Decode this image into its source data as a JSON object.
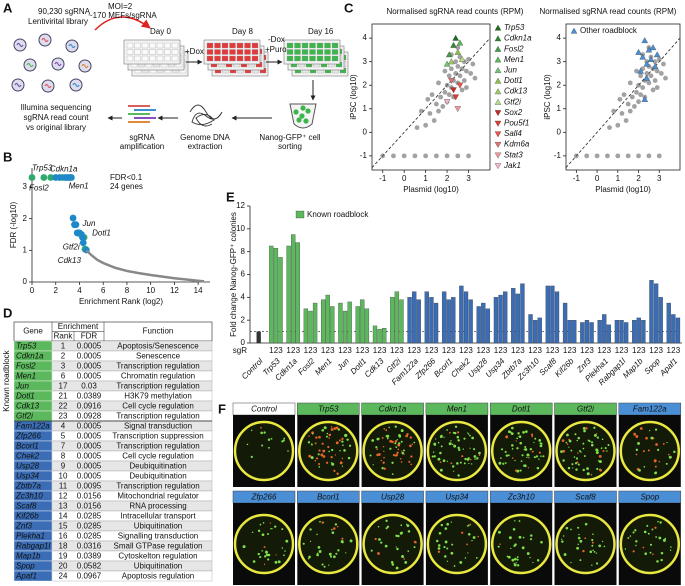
{
  "panel_labels": [
    "A",
    "B",
    "C",
    "D",
    "E",
    "F"
  ],
  "schematic": {
    "library": [
      "90,230 sgRNA",
      "Lentivirital library"
    ],
    "moi": [
      "MOI=2",
      "~170 MEFs/sgRNA"
    ],
    "days": [
      "Day 0",
      "Day 8",
      "Day 16"
    ],
    "treatments": [
      "+Dox",
      "-Dox",
      "+Puro"
    ],
    "sorting": [
      "Nanog-GFP⁺ cell",
      "sorting"
    ],
    "extraction": [
      "Genome DNA",
      "extraction"
    ],
    "amplification": [
      "sgRNA",
      "amplification"
    ],
    "sequencing": [
      "Illumina sequencing",
      "sgRNA read count",
      "vs original library"
    ]
  },
  "chart_data": [
    {
      "type": "scatter",
      "xlabel": "Enrichment Rank (log2)",
      "ylabel": "FDR (-log10)",
      "annotations": [
        "FDR<0.1",
        "24 genes"
      ],
      "xlim": [
        0,
        15
      ],
      "xticks": [
        0,
        2,
        4,
        6,
        8,
        10,
        12,
        14
      ],
      "ylim": [
        0,
        3.6
      ],
      "yticks": [
        0,
        1,
        2,
        3
      ],
      "series": [
        {
          "mark": "point",
          "color": "#2eaa6e",
          "labels": [
            "Trp53",
            "Cdkn1a",
            "Fosl2",
            "Men1",
            "Jun",
            "Dotl1",
            "Cdk13",
            "Gtf2i"
          ],
          "x": [
            0,
            1,
            1.58,
            2.58,
            4.09,
            4.39,
            4.46,
            4.52
          ],
          "values": [
            3.3,
            3.3,
            3.3,
            3.3,
            1.52,
            1.41,
            1.04,
            1.03
          ]
        },
        {
          "mark": "point",
          "color": "#1e88c8",
          "x": [
            2,
            2.32,
            2.81,
            3,
            3.17,
            3.32,
            3.46,
            3.58,
            3.7,
            3.81,
            3.91,
            4,
            4.17,
            4.25,
            4.32,
            4.58
          ],
          "values": [
            3.3,
            3.3,
            3.3,
            3.3,
            3.3,
            3.3,
            2.02,
            1.81,
            1.81,
            1.55,
            1.55,
            1.55,
            1.5,
            1.41,
            1.24,
            1.01
          ]
        },
        {
          "mark": "line",
          "color": "#888888",
          "x": [
            4.6,
            5,
            5.5,
            6,
            7,
            8,
            9,
            10,
            11,
            12,
            13,
            14,
            14.5
          ],
          "values": [
            1.0,
            0.85,
            0.7,
            0.6,
            0.45,
            0.35,
            0.28,
            0.22,
            0.17,
            0.12,
            0.08,
            0.04,
            0.02
          ]
        }
      ]
    },
    {
      "type": "scatter",
      "title": "Normalised sgRNA read counts (RPM)",
      "xlabel": "Plasmid (log10)",
      "ylabel": "iPSC (log10)",
      "xlim": [
        -1.5,
        4
      ],
      "xticks": [
        -1,
        0,
        1,
        2,
        3
      ],
      "ylim": [
        -1.6,
        4.6
      ],
      "yticks": [
        -1,
        0,
        1,
        2,
        3,
        4
      ],
      "legend": "right",
      "series": [
        {
          "marker": "dot",
          "color": "#555555",
          "x": [
            1.0,
            1.2,
            1.4,
            1.5,
            1.6,
            1.7,
            1.8,
            1.9,
            2.0,
            2.0,
            2.1,
            2.1,
            2.2,
            2.2,
            2.3,
            2.3,
            2.4,
            2.4,
            2.5,
            2.5,
            2.6,
            2.6,
            2.7,
            2.7,
            2.8,
            2.8,
            2.9,
            3.0,
            3.1,
            3.2,
            1.3,
            1.6,
            1.9,
            2.2,
            2.5,
            0.8,
            1.1,
            2.9,
            3.3,
            0.6,
            -1,
            -0.5,
            0,
            0.5,
            1,
            1.5,
            2,
            2.5,
            3
          ],
          "values": [
            0.3,
            0.8,
            0.5,
            1.2,
            0.9,
            1.5,
            1.1,
            1.7,
            1.3,
            2.0,
            1.6,
            2.4,
            1.9,
            2.7,
            2.2,
            1.5,
            2.5,
            3.0,
            2.1,
            2.8,
            2.4,
            3.2,
            2.7,
            1.8,
            3.0,
            2.2,
            2.6,
            3.1,
            2.5,
            2.9,
            1.6,
            2.1,
            2.6,
            3.3,
            3.6,
            0.9,
            1.4,
            1.9,
            2.3,
            0.2,
            -1,
            -1,
            -1,
            -1,
            -1,
            -1,
            -1,
            -1,
            -1
          ]
        },
        {
          "name": "Trp53",
          "marker": "up",
          "color": "#1b6e1b",
          "x": [
            2.4
          ],
          "values": [
            4.0
          ]
        },
        {
          "name": "Cdkn1a",
          "marker": "up",
          "color": "#2e8b2e",
          "x": [
            2.3
          ],
          "values": [
            3.7
          ]
        },
        {
          "name": "Fosl2",
          "marker": "up",
          "color": "#43a047",
          "x": [
            2.1
          ],
          "values": [
            3.3
          ]
        },
        {
          "name": "Men1",
          "marker": "up",
          "color": "#5cb85c",
          "x": [
            2.6
          ],
          "values": [
            3.8
          ]
        },
        {
          "name": "Jun",
          "marker": "up",
          "color": "#76c376",
          "x": [
            2.0
          ],
          "values": [
            2.9
          ]
        },
        {
          "name": "Dotl1",
          "marker": "up",
          "color": "#8bc34a",
          "x": [
            2.5
          ],
          "values": [
            3.4
          ]
        },
        {
          "name": "Cdk13",
          "marker": "up",
          "color": "#9ccc65",
          "x": [
            2.2
          ],
          "values": [
            3.0
          ]
        },
        {
          "name": "Gtf2i",
          "marker": "up",
          "color": "#b9dc8c",
          "x": [
            2.7
          ],
          "values": [
            3.1
          ]
        },
        {
          "name": "Sox2",
          "marker": "down",
          "color": "#c62828",
          "x": [
            2.3
          ],
          "values": [
            1.8
          ]
        },
        {
          "name": "Pou5f1",
          "marker": "down",
          "color": "#e53935",
          "x": [
            2.4
          ],
          "values": [
            1.5
          ]
        },
        {
          "name": "Sall4",
          "marker": "down",
          "color": "#ef5350",
          "x": [
            2.6
          ],
          "values": [
            2.0
          ]
        },
        {
          "name": "Kdm6a",
          "marker": "down",
          "color": "#e57373",
          "x": [
            2.2
          ],
          "values": [
            2.2
          ]
        },
        {
          "name": "Stat3",
          "marker": "down",
          "color": "#ef9a9a",
          "x": [
            2.5
          ],
          "values": [
            1.0
          ]
        },
        {
          "name": "Jak1",
          "marker": "down",
          "color": "#f4b6c8",
          "x": [
            2.0
          ],
          "values": [
            1.3
          ]
        }
      ]
    },
    {
      "type": "scatter",
      "title": "Normalised sgRNA read counts (RPM)",
      "xlabel": "Plasmid (log10)",
      "ylabel": "iPSC (log10)",
      "xlim": [
        -1.5,
        4
      ],
      "xticks": [
        -1,
        0,
        1,
        2,
        3
      ],
      "ylim": [
        -1.6,
        4.6
      ],
      "yticks": [
        -1,
        0,
        1,
        2,
        3,
        4
      ],
      "legend": "top-left",
      "series": [
        {
          "marker": "dot",
          "color": "#555555",
          "x": [
            1.0,
            1.2,
            1.4,
            1.5,
            1.6,
            1.7,
            1.8,
            1.9,
            2.0,
            2.0,
            2.1,
            2.1,
            2.2,
            2.2,
            2.3,
            2.3,
            2.4,
            2.4,
            2.5,
            2.5,
            2.6,
            2.6,
            2.7,
            2.7,
            2.8,
            2.8,
            2.9,
            3.0,
            3.1,
            3.2,
            1.3,
            1.6,
            1.9,
            2.2,
            2.5,
            0.8,
            1.1,
            2.9,
            3.3,
            0.6,
            -1,
            -0.5,
            0,
            0.5,
            1,
            1.5,
            2,
            2.5,
            3
          ],
          "values": [
            0.3,
            0.8,
            0.5,
            1.2,
            0.9,
            1.5,
            1.1,
            1.7,
            1.3,
            2.0,
            1.6,
            2.4,
            1.9,
            2.7,
            2.2,
            1.5,
            2.5,
            3.0,
            2.1,
            2.8,
            2.4,
            3.2,
            2.7,
            1.8,
            3.0,
            2.2,
            2.6,
            3.1,
            2.5,
            2.9,
            1.6,
            2.1,
            2.6,
            3.3,
            3.6,
            0.9,
            1.4,
            1.9,
            2.3,
            0.2,
            -1,
            -1,
            -1,
            -1,
            -1,
            -1,
            -1,
            -1,
            -1
          ]
        },
        {
          "name": "Other roadblock",
          "marker": "up",
          "color": "#4a8fd6",
          "x": [
            2.3,
            2.5,
            2.2,
            2.7,
            2.4,
            2.6,
            2.1,
            2.8,
            2.4,
            2.0,
            2.9,
            2.3
          ],
          "values": [
            3.9,
            3.5,
            3.2,
            3.6,
            2.9,
            3.1,
            2.6,
            2.8,
            2.3,
            3.4,
            3.3,
            1.4
          ]
        }
      ]
    },
    {
      "type": "grouped-bar",
      "ylabel": "Fold change Nanog-GFP⁺ colonies",
      "guide_label": "sgR",
      "guides": [
        1,
        2,
        3
      ],
      "legend": [
        {
          "name": "Known roadblock",
          "color": "#5cb85c"
        }
      ],
      "ylim": [
        0,
        12
      ],
      "yticks": [
        0,
        2,
        4,
        6,
        8,
        10,
        12
      ],
      "groups": [
        {
          "name": "Control",
          "color": "#333333",
          "values": [
            1
          ]
        },
        {
          "name": "Trp53",
          "color": "#5cb85c",
          "values": [
            8.5,
            8.3,
            7.5
          ]
        },
        {
          "name": "Cdkn1a",
          "color": "#5cb85c",
          "values": [
            8.5,
            9.5,
            8.8
          ]
        },
        {
          "name": "Fosl2",
          "color": "#5cb85c",
          "values": [
            3.0,
            2.8,
            3.5
          ]
        },
        {
          "name": "Men1",
          "color": "#5cb85c",
          "values": [
            3.8,
            4.2,
            3.2
          ]
        },
        {
          "name": "Jun",
          "color": "#5cb85c",
          "values": [
            3.5,
            2.8,
            3.6
          ]
        },
        {
          "name": "Dotl1",
          "color": "#5cb85c",
          "values": [
            3.2,
            3.8,
            3.0
          ]
        },
        {
          "name": "Cdk13",
          "color": "#5cb85c",
          "values": [
            1.5,
            1.2,
            1.3
          ]
        },
        {
          "name": "Gtf2i",
          "color": "#5cb85c",
          "values": [
            4.0,
            4.5,
            3.8
          ]
        },
        {
          "name": "Fam122a",
          "color": "#3a6db5",
          "values": [
            4.0,
            4.5,
            3.8
          ]
        },
        {
          "name": "Zfp266",
          "color": "#3a6db5",
          "values": [
            4.5,
            4.0,
            3.5
          ]
        },
        {
          "name": "Bcorl1",
          "color": "#3a6db5",
          "values": [
            4.5,
            3.8,
            4.0
          ]
        },
        {
          "name": "Chek2",
          "color": "#3a6db5",
          "values": [
            5.0,
            4.5,
            3.8
          ]
        },
        {
          "name": "Usp28",
          "color": "#3a6db5",
          "values": [
            3.2,
            3.5,
            3.0
          ]
        },
        {
          "name": "Usp34",
          "color": "#3a6db5",
          "values": [
            4.0,
            4.2,
            4.5
          ]
        },
        {
          "name": "Zbtb7a",
          "color": "#3a6db5",
          "values": [
            4.8,
            4.3,
            5.2
          ]
        },
        {
          "name": "Zc3h10",
          "color": "#3a6db5",
          "values": [
            2.5,
            2.0,
            2.2
          ]
        },
        {
          "name": "Scaf8",
          "color": "#3a6db5",
          "values": [
            5.0,
            5.0,
            4.5
          ]
        },
        {
          "name": "Kif26b",
          "color": "#3a6db5",
          "values": [
            3.5,
            2.0,
            2.0
          ]
        },
        {
          "name": "Znf3",
          "color": "#3a6db5",
          "values": [
            1.8,
            2.0,
            1.8
          ]
        },
        {
          "name": "Plekha1",
          "color": "#3a6db5",
          "values": [
            2.0,
            2.5,
            1.6
          ]
        },
        {
          "name": "Rabgap1l",
          "color": "#3a6db5",
          "values": [
            2.0,
            2.0,
            1.8
          ]
        },
        {
          "name": "Map1b",
          "color": "#3a6db5",
          "values": [
            2.0,
            2.2,
            2.0
          ]
        },
        {
          "name": "Spop",
          "color": "#3a6db5",
          "values": [
            5.5,
            5.2,
            4.0
          ]
        },
        {
          "name": "Apaf1",
          "color": "#3a6db5",
          "values": [
            3.5,
            2.5,
            2.2
          ]
        }
      ]
    }
  ],
  "table": {
    "header": {
      "gene": "Gene",
      "group": "Enrichment",
      "rank": "Rank",
      "fdr": "FDR",
      "function": "Function"
    },
    "side_label": "Known roadblock",
    "roadblock_color": "#5cb85c",
    "other_color": "#3a6db5",
    "rows": [
      [
        "Trp53",
        1,
        0.0005,
        "Apoptosis/Senescence"
      ],
      [
        "Cdkn1a",
        2,
        0.0005,
        "Senescence"
      ],
      [
        "Fosl2",
        3,
        0.0005,
        "Transcription regulation"
      ],
      [
        "Men1",
        6,
        0.0005,
        "Chromatin regulation"
      ],
      [
        "Jun",
        17,
        0.03,
        "Transcription regulation"
      ],
      [
        "Dotl1",
        21,
        0.0389,
        "H3K79 methylation"
      ],
      [
        "Cdk13",
        22,
        0.0916,
        "Cell cycle regulation"
      ],
      [
        "Gtf2i",
        23,
        0.0928,
        "Transcription regulation"
      ],
      [
        "Fam122a",
        4,
        0.0005,
        "Signal transduction"
      ],
      [
        "Zfp266",
        5,
        0.0005,
        "Transcription suppression"
      ],
      [
        "Bcorl1",
        7,
        0.0005,
        "Transcription regulation"
      ],
      [
        "Chek2",
        8,
        0.0005,
        "Cell cycle regulation"
      ],
      [
        "Usp28",
        9,
        0.0005,
        "Deubiquitination"
      ],
      [
        "Usp34",
        10,
        0.0005,
        "Deubiquitination"
      ],
      [
        "Zbtb7a",
        11,
        0.0095,
        "Transcription regulation"
      ],
      [
        "Zc3h10",
        12,
        0.0156,
        "Mitochondrial regulator"
      ],
      [
        "Scaf8",
        13,
        0.0156,
        "RNA processing"
      ],
      [
        "Kif26b",
        14,
        0.0285,
        "Intracellular transport"
      ],
      [
        "Znf3",
        15,
        0.0285,
        "Ubiquitination"
      ],
      [
        "Plekha1",
        16,
        0.0285,
        "Signalling transduction"
      ],
      [
        "Rabgap1l",
        18,
        0.0316,
        "Small GTPase regulation"
      ],
      [
        "Map1b",
        19,
        0.0389,
        "Cytoskelton regulation"
      ],
      [
        "Spop",
        20,
        0.0582,
        "Ubiquitination"
      ],
      [
        "Apaf1",
        24,
        0.0967,
        "Apoptosis regulation"
      ]
    ],
    "roadblock_rows": 8
  },
  "plates": {
    "colors": {
      "control": "#ffffff",
      "roadblock": "#5cb85c",
      "other": "#4a8fd6"
    },
    "rows": [
      [
        {
          "label": "Control",
          "kind": "control"
        },
        {
          "label": "Trp53",
          "kind": "roadblock"
        },
        {
          "label": "Cdkn1a",
          "kind": "roadblock"
        },
        {
          "label": "Men1",
          "kind": "roadblock"
        },
        {
          "label": "Dotl1",
          "kind": "roadblock"
        },
        {
          "label": "Gtf2i",
          "kind": "roadblock"
        },
        {
          "label": "Fam122a",
          "kind": "other"
        }
      ],
      [
        {
          "label": "Zfp266",
          "kind": "other"
        },
        {
          "label": "Bcorl1",
          "kind": "other"
        },
        {
          "label": "Usp28",
          "kind": "other"
        },
        {
          "label": "Usp34",
          "kind": "other"
        },
        {
          "label": "Zc3h10",
          "kind": "other"
        },
        {
          "label": "Scaf8",
          "kind": "other"
        },
        {
          "label": "Spop",
          "kind": "other"
        }
      ]
    ]
  }
}
